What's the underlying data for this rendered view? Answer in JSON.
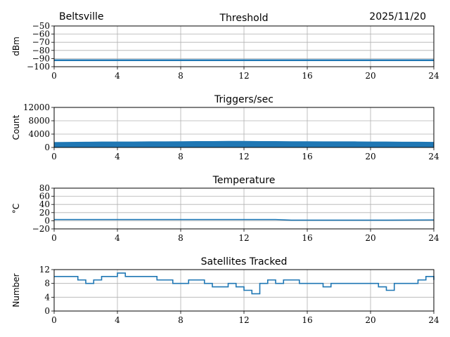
{
  "header": {
    "left": "Beltsville",
    "right": "2025/11/20"
  },
  "chart_data": [
    {
      "type": "line",
      "title": "Threshold",
      "ylabel": "dBm",
      "xlim": [
        0,
        24
      ],
      "ylim": [
        -100,
        -50
      ],
      "xticks": [
        0,
        4,
        8,
        12,
        16,
        20,
        24
      ],
      "yticks": [
        -50,
        -60,
        -70,
        -80,
        -90,
        -100
      ],
      "grid": true,
      "color": "#1f77b4",
      "x": [
        0,
        24
      ],
      "values": [
        -92,
        -92
      ]
    },
    {
      "type": "area",
      "title": "Triggers/sec",
      "ylabel": "Count",
      "xlim": [
        0,
        24
      ],
      "ylim": [
        0,
        12000
      ],
      "xticks": [
        0,
        4,
        8,
        12,
        16,
        20,
        24
      ],
      "yticks": [
        0,
        4000,
        8000,
        12000
      ],
      "grid": true,
      "color": "#1f77b4",
      "x": [
        0,
        1,
        2,
        3,
        4,
        5,
        6,
        7,
        8,
        9,
        10,
        11,
        12,
        13,
        14,
        15,
        16,
        17,
        18,
        19,
        20,
        21,
        22,
        23,
        24
      ],
      "values": [
        1500,
        1550,
        1600,
        1650,
        1650,
        1650,
        1700,
        1700,
        1750,
        1800,
        1800,
        1850,
        1850,
        1800,
        1800,
        1750,
        1750,
        1700,
        1700,
        1700,
        1650,
        1650,
        1600,
        1600,
        1550
      ]
    },
    {
      "type": "line",
      "title": "Temperature",
      "ylabel": "°C",
      "xlim": [
        0,
        24
      ],
      "ylim": [
        -20,
        80
      ],
      "xticks": [
        0,
        4,
        8,
        12,
        16,
        20,
        24
      ],
      "yticks": [
        -20,
        0,
        20,
        40,
        60,
        80
      ],
      "grid": true,
      "color": "#1f77b4",
      "x": [
        0,
        6,
        12,
        14,
        15,
        18,
        21,
        24
      ],
      "values": [
        3,
        3,
        3,
        3,
        1.5,
        1.5,
        1.5,
        2
      ]
    },
    {
      "type": "line",
      "title": "Satellites Tracked",
      "ylabel": "Number",
      "xlim": [
        0,
        24
      ],
      "ylim": [
        0,
        12
      ],
      "xticks": [
        0,
        4,
        8,
        12,
        16,
        20,
        24
      ],
      "yticks": [
        0,
        4,
        8,
        12
      ],
      "grid": true,
      "color": "#1f77b4",
      "x": [
        0,
        0.5,
        1,
        1.5,
        2,
        2.5,
        3,
        3.5,
        4,
        4.5,
        5,
        5.5,
        6,
        6.5,
        7,
        7.5,
        8,
        8.5,
        9,
        9.5,
        10,
        10.5,
        11,
        11.5,
        12,
        12.5,
        13,
        13.5,
        14,
        14.5,
        15,
        15.5,
        16,
        16.5,
        17,
        17.5,
        18,
        18.5,
        19,
        19.5,
        20,
        20.5,
        21,
        21.5,
        22,
        22.5,
        23,
        23.5,
        24
      ],
      "values": [
        10,
        10,
        10,
        9,
        8,
        9,
        10,
        10,
        11,
        10,
        10,
        10,
        10,
        9,
        9,
        8,
        8,
        9,
        9,
        8,
        7,
        7,
        8,
        7,
        6,
        5,
        8,
        9,
        8,
        9,
        9,
        8,
        8,
        8,
        7,
        8,
        8,
        8,
        8,
        8,
        8,
        7,
        6,
        8,
        8,
        8,
        9,
        10,
        9
      ]
    }
  ]
}
